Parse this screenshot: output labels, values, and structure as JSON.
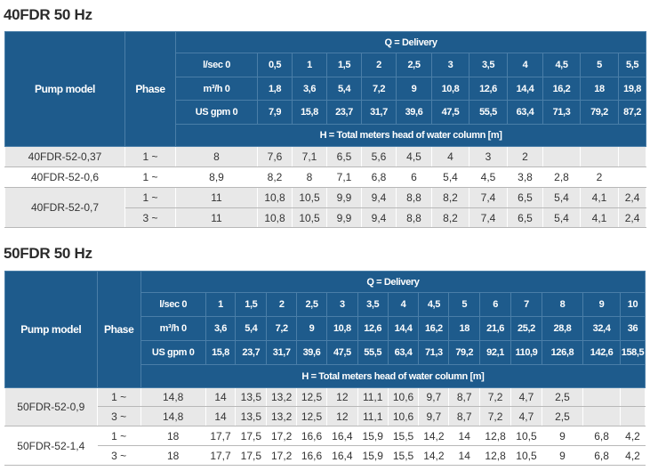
{
  "t1": {
    "title": "40FDR 50 Hz",
    "hdr_model": "Pump model",
    "hdr_phase": "Phase",
    "hdr_q": "Q = Delivery",
    "hdr_h": "H = Total meters head of water column [m]",
    "units": [
      "l/sec 0",
      "m³/h 0",
      "US gpm 0"
    ],
    "flow_rows": [
      [
        "0,5",
        "1",
        "1,5",
        "2",
        "2,5",
        "3",
        "3,5",
        "4",
        "4,5",
        "5",
        "5,5"
      ],
      [
        "1,8",
        "3,6",
        "5,4",
        "7,2",
        "9",
        "10,8",
        "12,6",
        "14,4",
        "16,2",
        "18",
        "19,8"
      ],
      [
        "7,9",
        "15,8",
        "23,7",
        "31,7",
        "39,6",
        "47,5",
        "55,5",
        "63,4",
        "71,3",
        "79,2",
        "87,2"
      ]
    ],
    "groups": [
      {
        "model": "40FDR-52-0,37",
        "rows": [
          {
            "phase": "1 ~",
            "vals": [
              "8",
              "7,6",
              "7,1",
              "6,5",
              "5,6",
              "4,5",
              "4",
              "3",
              "2",
              "",
              "",
              ""
            ]
          }
        ]
      },
      {
        "model": "40FDR-52-0,6",
        "rows": [
          {
            "phase": "1 ~",
            "vals": [
              "8,9",
              "8,2",
              "8",
              "7,1",
              "6,8",
              "6",
              "5,4",
              "4,5",
              "3,8",
              "2,8",
              "2",
              ""
            ]
          }
        ]
      },
      {
        "model": "40FDR-52-0,7",
        "rows": [
          {
            "phase": "1 ~",
            "vals": [
              "11",
              "10,8",
              "10,5",
              "9,9",
              "9,4",
              "8,8",
              "8,2",
              "7,4",
              "6,5",
              "5,4",
              "4,1",
              "2,4"
            ]
          },
          {
            "phase": "3 ~",
            "vals": [
              "11",
              "10,8",
              "10,5",
              "9,9",
              "9,4",
              "8,8",
              "8,2",
              "7,4",
              "6,5",
              "5,4",
              "4,1",
              "2,4"
            ]
          }
        ]
      }
    ]
  },
  "t2": {
    "title": "50FDR 50 Hz",
    "hdr_model": "Pump model",
    "hdr_phase": "Phase",
    "hdr_q": "Q = Delivery",
    "hdr_h": "H = Total meters head of water column [m]",
    "units": [
      "l/sec 0",
      "m³/h 0",
      "US gpm 0"
    ],
    "flow_rows": [
      [
        "1",
        "1,5",
        "2",
        "2,5",
        "3",
        "3,5",
        "4",
        "4,5",
        "5",
        "6",
        "7",
        "8",
        "9",
        "10"
      ],
      [
        "3,6",
        "5,4",
        "7,2",
        "9",
        "10,8",
        "12,6",
        "14,4",
        "16,2",
        "18",
        "21,6",
        "25,2",
        "28,8",
        "32,4",
        "36"
      ],
      [
        "15,8",
        "23,7",
        "31,7",
        "39,6",
        "47,5",
        "55,5",
        "63,4",
        "71,3",
        "79,2",
        "92,1",
        "110,9",
        "126,8",
        "142,6",
        "158,5"
      ]
    ],
    "groups": [
      {
        "model": "50FDR-52-0,9",
        "rows": [
          {
            "phase": "1 ~",
            "vals": [
              "14,8",
              "14",
              "13,5",
              "13,2",
              "12,5",
              "12",
              "11,1",
              "10,6",
              "9,7",
              "8,7",
              "7,2",
              "4,7",
              "2,5",
              "",
              ""
            ]
          },
          {
            "phase": "3 ~",
            "vals": [
              "14,8",
              "14",
              "13,5",
              "13,2",
              "12,5",
              "12",
              "11,1",
              "10,6",
              "9,7",
              "8,7",
              "7,2",
              "4,7",
              "2,5",
              "",
              ""
            ]
          }
        ]
      },
      {
        "model": "50FDR-52-1,4",
        "rows": [
          {
            "phase": "1 ~",
            "vals": [
              "18",
              "17,7",
              "17,5",
              "17,2",
              "16,6",
              "16,4",
              "15,9",
              "15,5",
              "14,2",
              "14",
              "12,8",
              "10,5",
              "9",
              "6,8",
              "4,2"
            ]
          },
          {
            "phase": "3 ~",
            "vals": [
              "18",
              "17,7",
              "17,5",
              "17,2",
              "16,6",
              "16,4",
              "15,9",
              "15,5",
              "14,2",
              "14",
              "12,8",
              "10,5",
              "9",
              "6,8",
              "4,2"
            ]
          }
        ]
      }
    ]
  }
}
